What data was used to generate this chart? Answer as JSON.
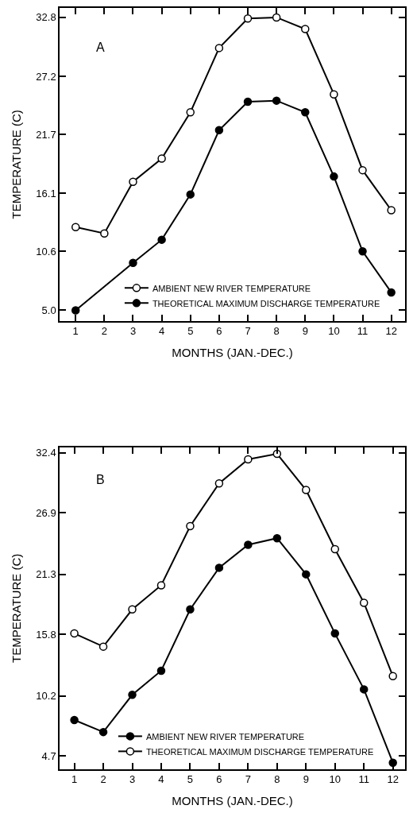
{
  "chart_data": [
    {
      "type": "line",
      "annotations": [
        "A"
      ],
      "xlabel": "MONTHS (JAN.-DEC.)",
      "ylabel": "TEMPERATURE (C)",
      "x": [
        1,
        2,
        3,
        4,
        5,
        6,
        7,
        8,
        9,
        10,
        11,
        12
      ],
      "xlim": [
        0.44,
        12.48
      ],
      "xticks": [
        1,
        2,
        3,
        4,
        5,
        6,
        7,
        8,
        9,
        10,
        11,
        12
      ],
      "ylim": [
        4.0,
        33.7
      ],
      "yticks": [
        {
          "value": 5.0,
          "label": "5.0"
        },
        10.6,
        16.1,
        21.7,
        27.2,
        32.8
      ],
      "series": [
        {
          "name": "AMBIENT NEW RIVER TEMPERATURE",
          "color": "#000000",
          "marker": "circle-open",
          "values": [
            12.9,
            12.3,
            17.2,
            19.4,
            23.8,
            29.9,
            32.7,
            32.8,
            31.7,
            25.5,
            18.3,
            14.5
          ]
        },
        {
          "name": "THEORETICAL MAXIMUM DISCHARGE TEMPERATURE",
          "color": "#000000",
          "marker": "circle",
          "values": [
            5.0,
            null,
            9.5,
            11.7,
            16.0,
            22.1,
            24.8,
            24.9,
            23.8,
            17.7,
            10.6,
            6.7
          ]
        }
      ],
      "legend": "bottom right",
      "line_style": "solid"
    },
    {
      "type": "line",
      "annotations": [
        "B"
      ],
      "xlabel": "MONTHS (JAN.-DEC.)",
      "ylabel": "TEMPERATURE (C)",
      "x": [
        1,
        2,
        3,
        4,
        5,
        6,
        7,
        8,
        9,
        10,
        11,
        12
      ],
      "xlim": [
        0.49,
        12.42
      ],
      "xticks": [
        1,
        2,
        3,
        4,
        5,
        6,
        7,
        8,
        9,
        10,
        11,
        12
      ],
      "ylim": [
        3.5,
        32.9
      ],
      "yticks": [
        4.7,
        10.2,
        15.8,
        21.3,
        26.9,
        32.4
      ],
      "series": [
        {
          "name": "AMBIENT NEW RIVER TEMPERATURE",
          "color": "#000000",
          "marker": "circle",
          "values": [
            8.0,
            6.9,
            10.3,
            12.5,
            18.1,
            21.9,
            24.0,
            24.6,
            21.3,
            15.9,
            10.8,
            4.1
          ]
        },
        {
          "name": "THEORETICAL MAXIMUM DISCHARGE TEMPERATURE",
          "color": "#000000",
          "marker": "circle-open",
          "values": [
            15.9,
            14.7,
            18.1,
            20.3,
            25.7,
            29.6,
            31.8,
            32.3,
            29.0,
            23.6,
            18.7,
            12.0
          ]
        }
      ],
      "legend": "bottom",
      "line_style": "solid"
    }
  ]
}
